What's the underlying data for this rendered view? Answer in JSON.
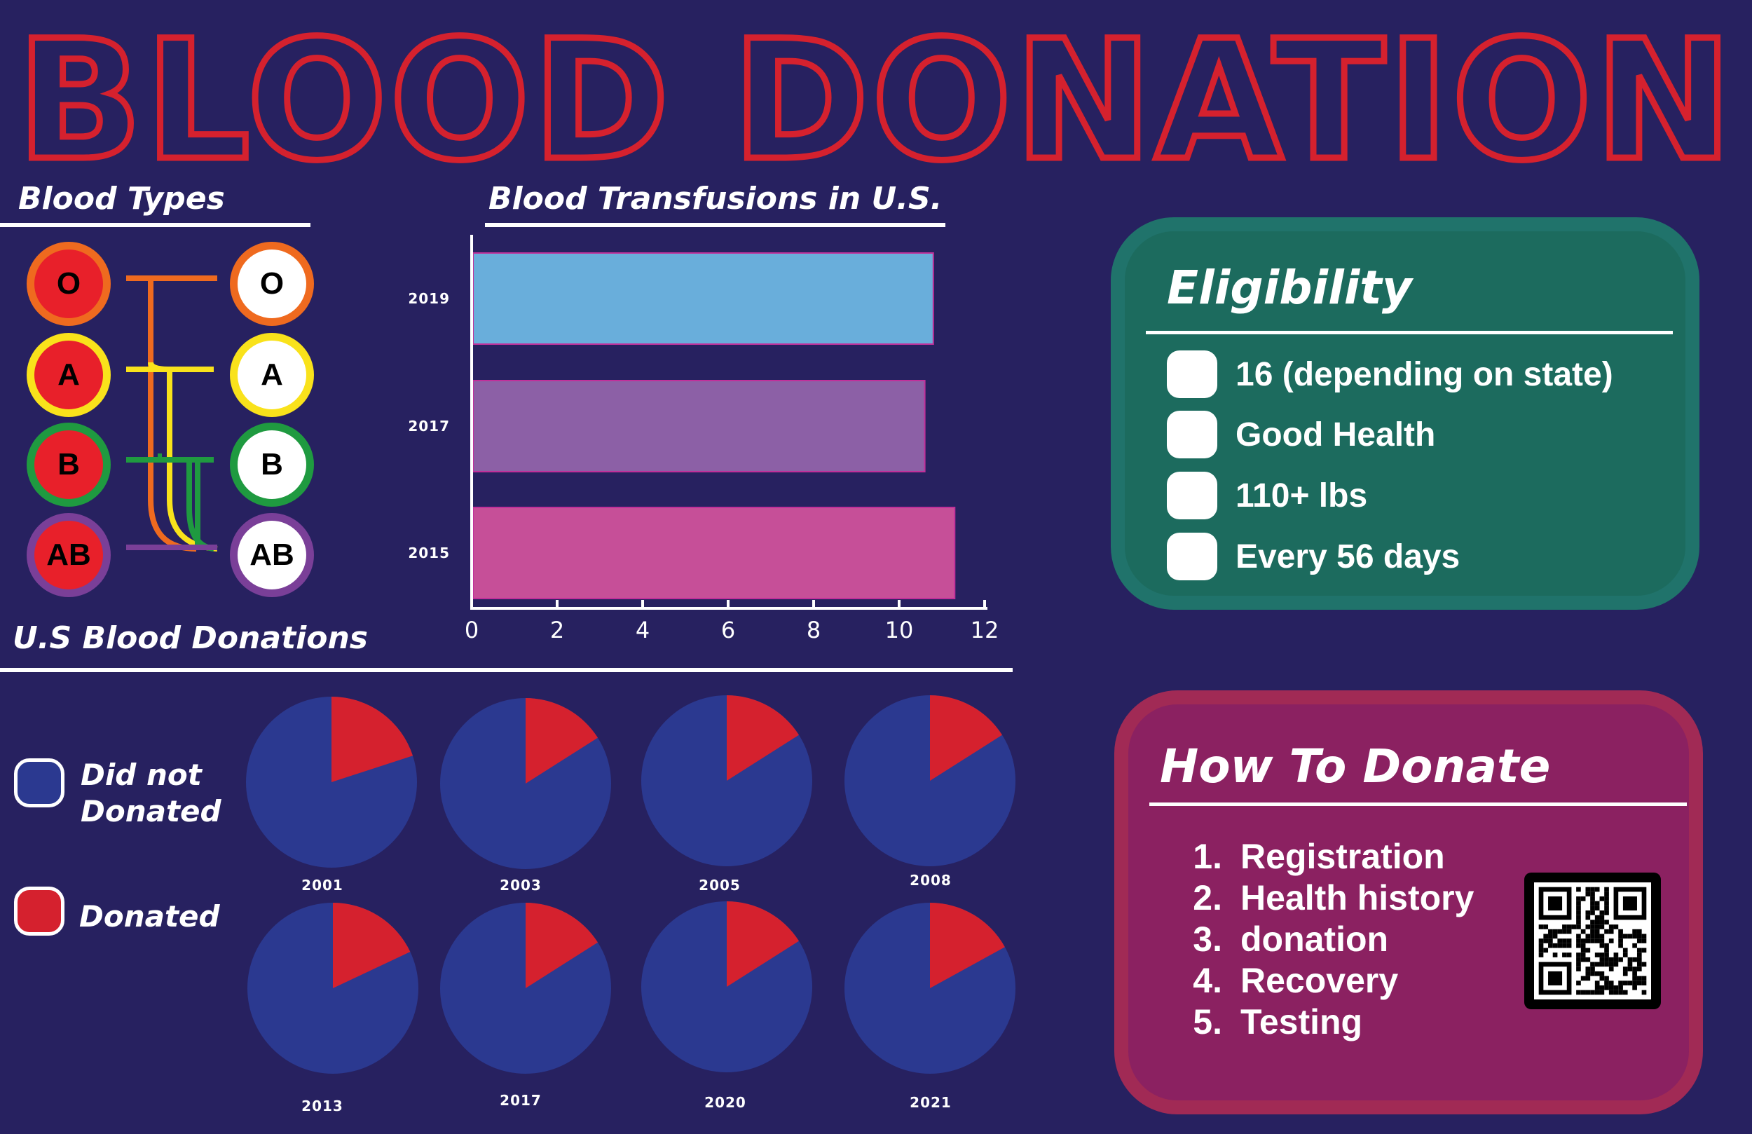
{
  "title": "BLOOD DONATION",
  "blood_types": {
    "heading": "Blood Types",
    "donors": [
      {
        "label": "O",
        "ring": "#ef6a1f"
      },
      {
        "label": "A",
        "ring": "#f9e21b"
      },
      {
        "label": "B",
        "ring": "#1f9a40"
      },
      {
        "label": "AB",
        "ring": "#7a3f98"
      }
    ],
    "recipients": [
      {
        "label": "O",
        "ring": "#ef6a1f"
      },
      {
        "label": "A",
        "ring": "#f9e21b"
      },
      {
        "label": "B",
        "ring": "#1f9a40"
      },
      {
        "label": "AB",
        "ring": "#7a3f98"
      }
    ]
  },
  "chart_data": [
    {
      "type": "bar",
      "title": "Blood Transfusions in U.S.",
      "orientation": "horizontal",
      "categories": [
        "2019",
        "2017",
        "2015"
      ],
      "values": [
        10.8,
        10.6,
        11.3
      ],
      "colors": [
        "#69aedb",
        "#8c60a6",
        "#c64f98"
      ],
      "xlim": [
        0,
        12
      ],
      "xticks": [
        "0",
        "2",
        "4",
        "6",
        "8",
        "10",
        "12"
      ],
      "xlabel": "",
      "ylabel": ""
    },
    {
      "type": "pie",
      "title": "U.S Blood Donations",
      "legend": [
        "Did not Donated",
        "Donated"
      ],
      "colors": {
        "did_not_donate": "#2b3990",
        "donated": "#d5212e"
      },
      "pies": [
        {
          "year": "2001",
          "donated_fraction": 0.2
        },
        {
          "year": "2003",
          "donated_fraction": 0.16
        },
        {
          "year": "2005",
          "donated_fraction": 0.16
        },
        {
          "year": "2008",
          "donated_fraction": 0.16
        },
        {
          "year": "2013",
          "donated_fraction": 0.18
        },
        {
          "year": "2017",
          "donated_fraction": 0.16
        },
        {
          "year": "2020",
          "donated_fraction": 0.16
        },
        {
          "year": "2021",
          "donated_fraction": 0.17
        }
      ]
    }
  ],
  "donations": {
    "heading": "U.S Blood Donations",
    "legend_not": "Did not\nDonated",
    "legend_yes": "Donated"
  },
  "eligibility": {
    "title": "Eligibility",
    "items": [
      "16 (depending on state)",
      "Good Health",
      "110+ lbs",
      "Every 56 days"
    ]
  },
  "how_to_donate": {
    "title": "How To Donate",
    "steps": [
      {
        "num": "1.",
        "text": "Registration"
      },
      {
        "num": "2.",
        "text": "Health history"
      },
      {
        "num": "3.",
        "text": "donation"
      },
      {
        "num": "4.",
        "text": "Recovery"
      },
      {
        "num": "5.",
        "text": "Testing"
      }
    ]
  }
}
